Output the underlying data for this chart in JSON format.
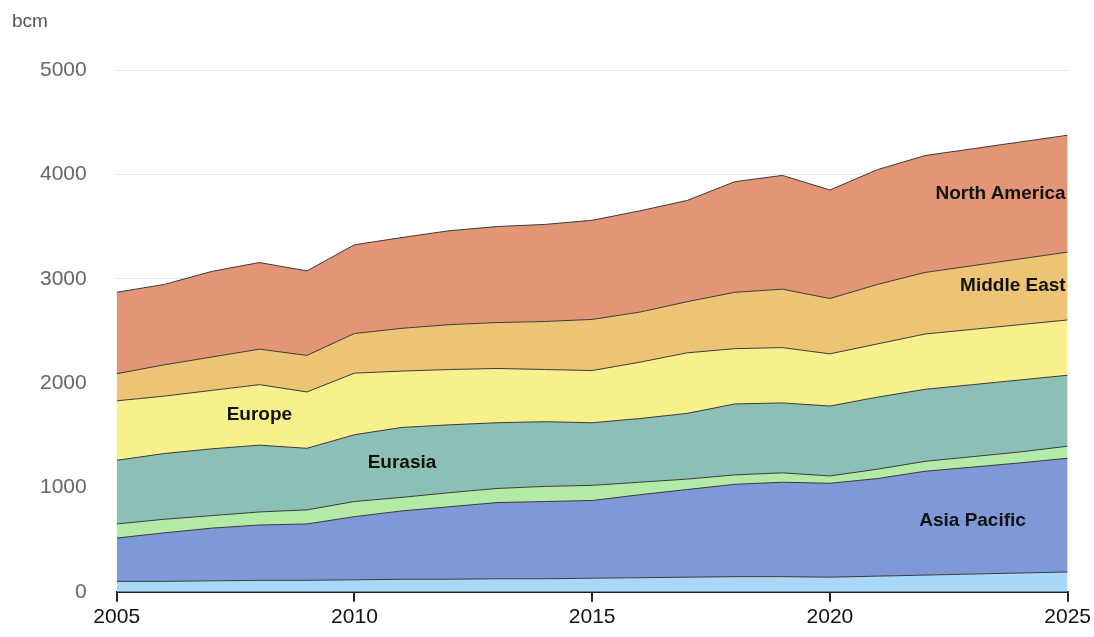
{
  "chart_data": {
    "type": "area",
    "stacked": true,
    "ylabel": "bcm",
    "x": [
      2005,
      2006,
      2007,
      2008,
      2009,
      2010,
      2011,
      2012,
      2013,
      2014,
      2015,
      2016,
      2017,
      2018,
      2019,
      2020,
      2021,
      2022,
      2023,
      2024,
      2025
    ],
    "xlim": [
      2005,
      2025
    ],
    "xticks": [
      2005,
      2010,
      2015,
      2020,
      2025
    ],
    "ylim": [
      0,
      5000
    ],
    "yticks": [
      0,
      1000,
      2000,
      3000,
      4000,
      5000
    ],
    "grid": "y",
    "legend": false,
    "series": [
      {
        "color": "#a8d8f8",
        "values": [
          100,
          100,
          105,
          110,
          110,
          115,
          120,
          120,
          125,
          125,
          130,
          135,
          140,
          145,
          145,
          140,
          150,
          160,
          170,
          180,
          190
        ]
      },
      {
        "name": "Asia Pacific",
        "color": "#7f98d8",
        "values": [
          415,
          465,
          505,
          530,
          540,
          605,
          655,
          695,
          730,
          740,
          745,
          795,
          840,
          885,
          905,
          900,
          935,
          995,
          1025,
          1055,
          1090
        ]
      },
      {
        "color": "#b4eaa8",
        "values": [
          135,
          130,
          120,
          125,
          135,
          145,
          130,
          135,
          135,
          145,
          145,
          120,
          100,
          90,
          90,
          70,
          90,
          95,
          100,
          105,
          115
        ]
      },
      {
        "name": "Eurasia",
        "color": "#8cbfb6",
        "values": [
          610,
          630,
          640,
          640,
          590,
          640,
          670,
          650,
          630,
          620,
          600,
          610,
          630,
          680,
          670,
          670,
          690,
          690,
          690,
          690,
          680
        ]
      },
      {
        "name": "Europe",
        "color": "#f8f08a",
        "values": [
          570,
          550,
          560,
          580,
          540,
          590,
          540,
          530,
          520,
          500,
          500,
          540,
          580,
          530,
          530,
          500,
          510,
          530,
          530,
          530,
          530
        ]
      },
      {
        "name": "Middle East",
        "color": "#ecc473",
        "values": [
          260,
          300,
          320,
          340,
          350,
          380,
          410,
          430,
          440,
          460,
          490,
          480,
          490,
          540,
          560,
          530,
          570,
          590,
          610,
          630,
          650
        ]
      },
      {
        "name": "North America",
        "color": "#e39676",
        "values": [
          780,
          770,
          820,
          830,
          810,
          850,
          870,
          900,
          920,
          930,
          950,
          970,
          970,
          1060,
          1090,
          1040,
          1100,
          1120,
          1120,
          1120,
          1120
        ]
      }
    ]
  }
}
